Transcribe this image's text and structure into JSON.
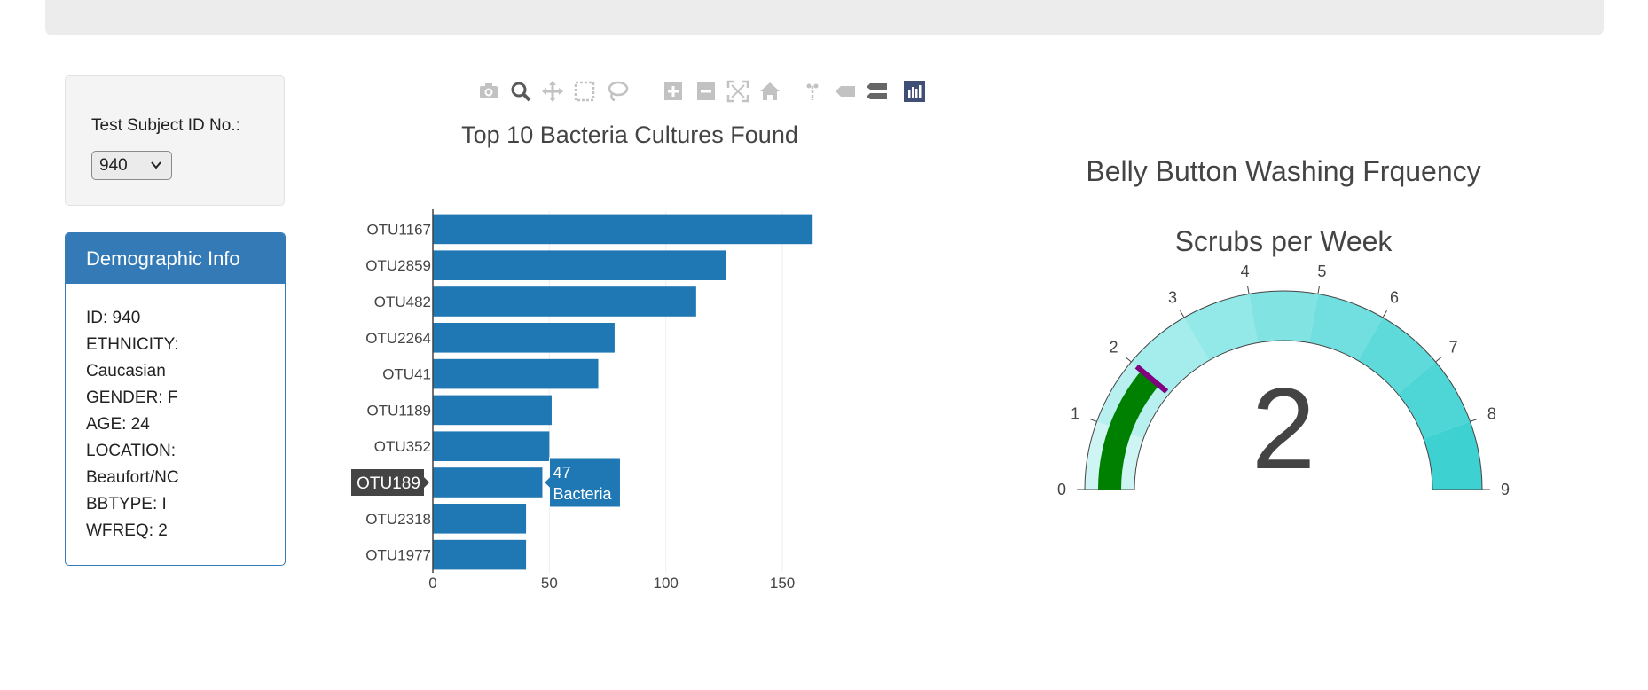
{
  "selector": {
    "label": "Test Subject ID No.:",
    "selected": "940"
  },
  "demographics": {
    "title": "Demographic Info",
    "lines": [
      "ID: 940",
      "ETHNICITY:",
      "Caucasian",
      "GENDER: F",
      "AGE: 24",
      "LOCATION:",
      "Beaufort/NC",
      "BBTYPE: I",
      "WFREQ: 2"
    ]
  },
  "modebar": {
    "icons": [
      "camera-icon",
      "zoom-icon",
      "pan-icon",
      "box-select-icon",
      "lasso-select-icon",
      "zoom-in-icon",
      "zoom-out-icon",
      "autoscale-icon",
      "reset-axes-icon",
      "spike-lines-icon",
      "hover-closest-icon",
      "hover-compare-icon",
      "plotly-logo-icon"
    ]
  },
  "colors": {
    "bar": "#1f77b4",
    "needle": "#800080",
    "gauge_bar": "#008000",
    "header": "#337ab7",
    "hover_label": "#444444"
  },
  "chart_data": [
    {
      "type": "bar",
      "orientation": "horizontal",
      "title": "Top 10 Bacteria Cultures Found",
      "categories": [
        "OTU1167",
        "OTU2859",
        "OTU482",
        "OTU2264",
        "OTU41",
        "OTU1189",
        "OTU352",
        "OTU189",
        "OTU2318",
        "OTU1977"
      ],
      "values": [
        163,
        126,
        113,
        78,
        71,
        51,
        50,
        47,
        40,
        40
      ],
      "xlim": [
        0,
        164
      ],
      "xticks": [
        0,
        50,
        100,
        150
      ],
      "grid": true,
      "hover": {
        "category": "OTU189",
        "value_text": "47",
        "label_text": "Bacteria"
      }
    },
    {
      "type": "gauge",
      "title": "Belly Button Washing Frquency",
      "subtitle": "Scrubs per Week",
      "value": 2,
      "range": [
        0,
        9
      ],
      "ticks": [
        0,
        1,
        2,
        3,
        4,
        5,
        6,
        7,
        8,
        9
      ],
      "step_colors": [
        "#cef4f4",
        "#b8efef",
        "#a5ecec",
        "#93e8e8",
        "#82e3e3",
        "#71dfdf",
        "#5fdada",
        "#4ed6d6",
        "#3dd1d1"
      ]
    }
  ]
}
